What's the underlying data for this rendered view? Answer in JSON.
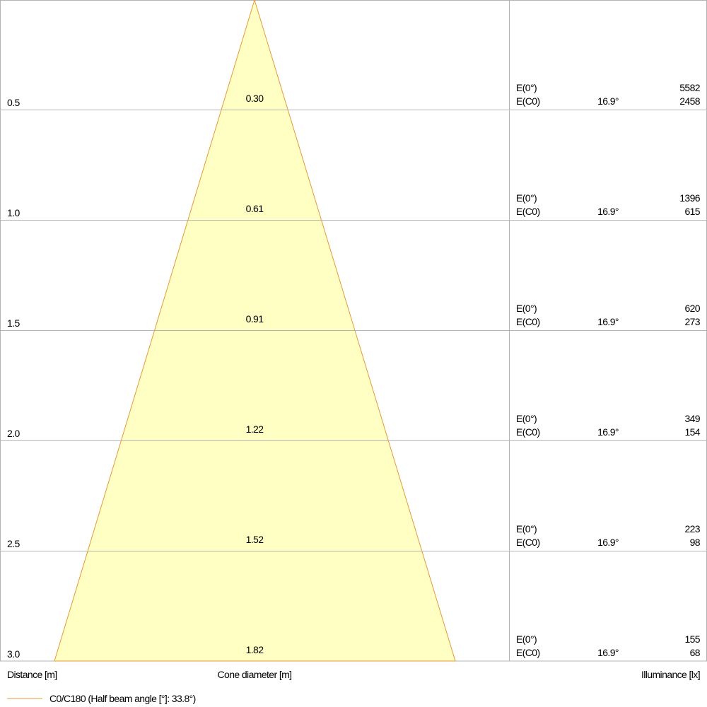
{
  "columns": {
    "distance": "Distance [m]",
    "diameter": "Cone diameter [m]",
    "illuminance": "Illuminance [lx]"
  },
  "legend": "C0/C180 (Half beam angle [°]: 33.8°)",
  "rows": [
    {
      "distance": "0.5",
      "diameter": "0.30",
      "e0_label": "E(0°)",
      "e0": "5582",
      "ec0_label": "E(C0)",
      "angle": "16.9°",
      "ec0": "2458"
    },
    {
      "distance": "1.0",
      "diameter": "0.61",
      "e0_label": "E(0°)",
      "e0": "1396",
      "ec0_label": "E(C0)",
      "angle": "16.9°",
      "ec0": "615"
    },
    {
      "distance": "1.5",
      "diameter": "0.91",
      "e0_label": "E(0°)",
      "e0": "620",
      "ec0_label": "E(C0)",
      "angle": "16.9°",
      "ec0": "273"
    },
    {
      "distance": "2.0",
      "diameter": "1.22",
      "e0_label": "E(0°)",
      "e0": "349",
      "ec0_label": "E(C0)",
      "angle": "16.9°",
      "ec0": "154"
    },
    {
      "distance": "2.5",
      "diameter": "1.52",
      "e0_label": "E(0°)",
      "e0": "223",
      "ec0_label": "E(C0)",
      "angle": "16.9°",
      "ec0": "98"
    },
    {
      "distance": "3.0",
      "diameter": "1.82",
      "e0_label": "E(0°)",
      "e0": "155",
      "ec0_label": "E(C0)",
      "angle": "16.9°",
      "ec0": "68"
    }
  ]
}
